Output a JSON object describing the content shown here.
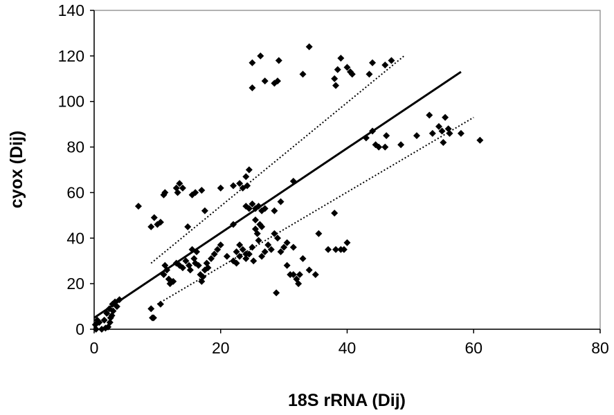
{
  "chart_data": {
    "type": "scatter",
    "title": "",
    "xlabel": "18S rRNA (Dij)",
    "ylabel": "cyox (Dij)",
    "xlim": [
      0,
      80
    ],
    "ylim": [
      0,
      140
    ],
    "x_ticks": [
      "0",
      "20",
      "40",
      "60",
      "80"
    ],
    "y_ticks": [
      "0",
      "20",
      "40",
      "60",
      "80",
      "100",
      "120",
      "140"
    ],
    "grid": false,
    "legend": "none",
    "marker": "diamond",
    "marker_color": "#000000",
    "points": [
      [
        0.2,
        2
      ],
      [
        0.5,
        4
      ],
      [
        0.8,
        3
      ],
      [
        0.3,
        0
      ],
      [
        1.2,
        0
      ],
      [
        1.8,
        0.5
      ],
      [
        2.2,
        1
      ],
      [
        2.5,
        3
      ],
      [
        2.8,
        6
      ],
      [
        3,
        8
      ],
      [
        2.4,
        9
      ],
      [
        2.9,
        11
      ],
      [
        3.3,
        12
      ],
      [
        3.6,
        10
      ],
      [
        4,
        13
      ],
      [
        2,
        7
      ],
      [
        1.6,
        4
      ],
      [
        2.6,
        5
      ],
      [
        7,
        54
      ],
      [
        9,
        45
      ],
      [
        9.5,
        49
      ],
      [
        10,
        46
      ],
      [
        10.5,
        47
      ],
      [
        11,
        59
      ],
      [
        11.2,
        60
      ],
      [
        13,
        62
      ],
      [
        13.5,
        64
      ],
      [
        13.2,
        60
      ],
      [
        14,
        62
      ],
      [
        14.8,
        45
      ],
      [
        15.5,
        59
      ],
      [
        16,
        60
      ],
      [
        17,
        61
      ],
      [
        17.5,
        52
      ],
      [
        20,
        62
      ],
      [
        22,
        63
      ],
      [
        23,
        64
      ],
      [
        23.5,
        62
      ],
      [
        24,
        67
      ],
      [
        24.2,
        63
      ],
      [
        24.5,
        70
      ],
      [
        22,
        46
      ],
      [
        24,
        54
      ],
      [
        9,
        9
      ],
      [
        9.2,
        5
      ],
      [
        9.4,
        5
      ],
      [
        10.5,
        11
      ],
      [
        11,
        24
      ],
      [
        11.2,
        28
      ],
      [
        11.5,
        26
      ],
      [
        11.8,
        22
      ],
      [
        12,
        20
      ],
      [
        12.5,
        21
      ],
      [
        13,
        29
      ],
      [
        13.5,
        28
      ],
      [
        14,
        27
      ],
      [
        14.5,
        30
      ],
      [
        15,
        28
      ],
      [
        15.2,
        26
      ],
      [
        15.5,
        35
      ],
      [
        15.8,
        31
      ],
      [
        16,
        29
      ],
      [
        16.2,
        34
      ],
      [
        16.5,
        28
      ],
      [
        16.8,
        24
      ],
      [
        17,
        21
      ],
      [
        17.2,
        23
      ],
      [
        17.5,
        26
      ],
      [
        17.8,
        29
      ],
      [
        18,
        27
      ],
      [
        18.5,
        31
      ],
      [
        19,
        33
      ],
      [
        19.5,
        35
      ],
      [
        20,
        37
      ],
      [
        21,
        32
      ],
      [
        22,
        30
      ],
      [
        22.5,
        34
      ],
      [
        23,
        32
      ],
      [
        23.5,
        35
      ],
      [
        24,
        31
      ],
      [
        24.5,
        33
      ],
      [
        25,
        36
      ],
      [
        25.2,
        30
      ],
      [
        25.5,
        44
      ],
      [
        25.8,
        42
      ],
      [
        26,
        39
      ],
      [
        26.2,
        46
      ],
      [
        26.5,
        32
      ],
      [
        27,
        34
      ],
      [
        27.5,
        37
      ],
      [
        28,
        35
      ],
      [
        28.5,
        42
      ],
      [
        29,
        40
      ],
      [
        29.5,
        34
      ],
      [
        30,
        36
      ],
      [
        30.5,
        38
      ],
      [
        24.5,
        53
      ],
      [
        25,
        55
      ],
      [
        25.5,
        53
      ],
      [
        26,
        54
      ],
      [
        26.5,
        52
      ],
      [
        27,
        53
      ],
      [
        28.5,
        52
      ],
      [
        29.5,
        56
      ],
      [
        31.5,
        65
      ],
      [
        31.5,
        36
      ],
      [
        30.5,
        28
      ],
      [
        31,
        24
      ],
      [
        31.5,
        24
      ],
      [
        32,
        22
      ],
      [
        32.3,
        20
      ],
      [
        32.5,
        24
      ],
      [
        33,
        31
      ],
      [
        34,
        26
      ],
      [
        35,
        24
      ],
      [
        35.5,
        42
      ],
      [
        28.8,
        16
      ],
      [
        22.5,
        29
      ],
      [
        23,
        37
      ],
      [
        24,
        33
      ],
      [
        25.5,
        48
      ],
      [
        26.5,
        45
      ],
      [
        33,
        112
      ],
      [
        34,
        124
      ],
      [
        25,
        117
      ],
      [
        26.3,
        120
      ],
      [
        25,
        106
      ],
      [
        27,
        109
      ],
      [
        28.5,
        108
      ],
      [
        29,
        109
      ],
      [
        29.2,
        118
      ],
      [
        38,
        110
      ],
      [
        38.2,
        107
      ],
      [
        38.5,
        114
      ],
      [
        39,
        119
      ],
      [
        40,
        115
      ],
      [
        40.5,
        113
      ],
      [
        40.8,
        112
      ],
      [
        43.5,
        112
      ],
      [
        44,
        117
      ],
      [
        46,
        116
      ],
      [
        47,
        118
      ],
      [
        38,
        51
      ],
      [
        38.2,
        35
      ],
      [
        39,
        35
      ],
      [
        39.5,
        35
      ],
      [
        40,
        38
      ],
      [
        37,
        35
      ],
      [
        43,
        84
      ],
      [
        44,
        87
      ],
      [
        44.5,
        81
      ],
      [
        45,
        80
      ],
      [
        46,
        80
      ],
      [
        46.2,
        85
      ],
      [
        48.5,
        81
      ],
      [
        51,
        85
      ],
      [
        53,
        94
      ],
      [
        53.5,
        86
      ],
      [
        54.5,
        89
      ],
      [
        55,
        87
      ],
      [
        55.2,
        82
      ],
      [
        55.5,
        93
      ],
      [
        56,
        88
      ],
      [
        56.2,
        86
      ],
      [
        58,
        86
      ],
      [
        61,
        83
      ]
    ],
    "regression": {
      "x1": 0,
      "y1": 5,
      "x2": 58,
      "y2": 113
    },
    "upper_bound": {
      "x1": 9,
      "y1": 29,
      "x2": 49,
      "y2": 120
    },
    "lower_bound": {
      "x1": 10,
      "y1": 11,
      "x2": 60,
      "y2": 93
    }
  }
}
